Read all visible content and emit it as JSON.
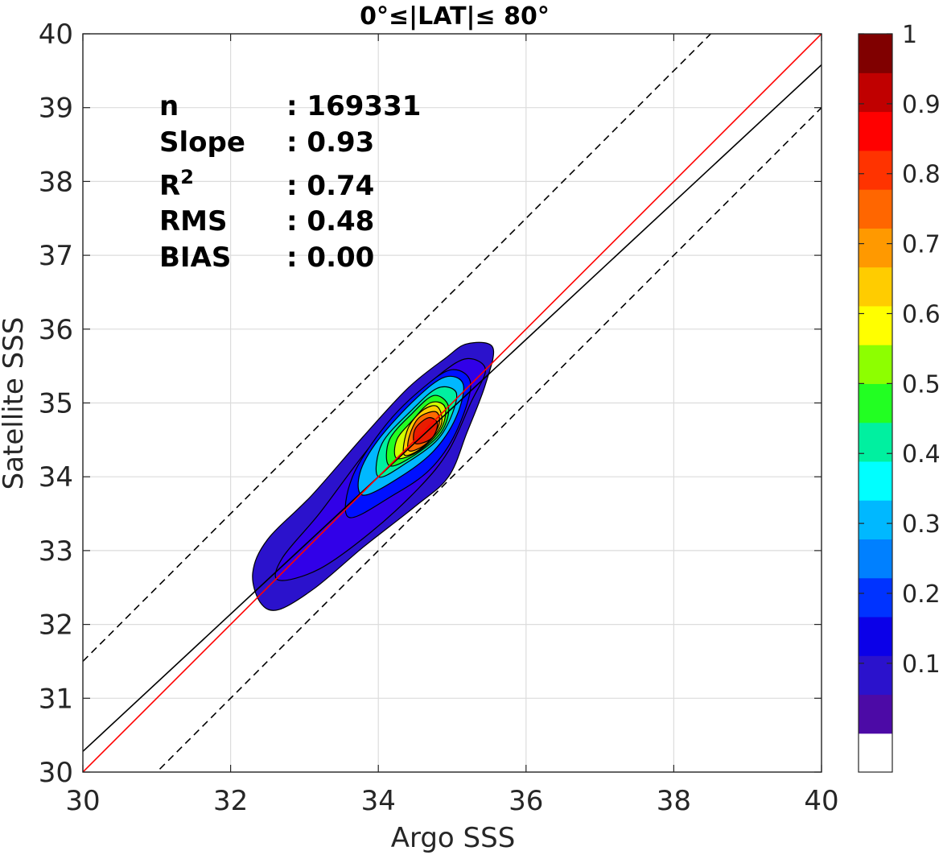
{
  "chart_data": {
    "type": "contour",
    "title": "0°≤|LAT|≤ 80°",
    "xlabel": "Argo SSS",
    "ylabel": "Satellite SSS",
    "xlim": [
      30,
      40
    ],
    "ylim": [
      30,
      40
    ],
    "xticks": [
      "30",
      "32",
      "34",
      "36",
      "38",
      "40"
    ],
    "yticks": [
      "30",
      "31",
      "32",
      "33",
      "34",
      "35",
      "36",
      "37",
      "38",
      "39",
      "40"
    ],
    "grid": true,
    "stats": [
      {
        "label": "n",
        "value": ": 169331"
      },
      {
        "label": "Slope",
        "value": ": 0.93"
      },
      {
        "label": "R",
        "sup": "2",
        "value": ": 0.74"
      },
      {
        "label": "RMS",
        "value": ": 0.48"
      },
      {
        "label": "BIAS",
        "value": ": 0.00"
      }
    ],
    "lines": {
      "one_to_one": {
        "color": "#ff0000",
        "from": [
          30,
          30
        ],
        "to": [
          40,
          40
        ]
      },
      "fit": {
        "color": "#000000",
        "from": [
          30,
          30.28
        ],
        "to": [
          40,
          39.58
        ]
      },
      "upper_bound": {
        "color": "#000000",
        "dashed": true,
        "from": [
          30,
          31.5
        ],
        "to": [
          40,
          41.5
        ]
      },
      "lower_bound": {
        "color": "#000000",
        "dashed": true,
        "from": [
          30,
          29
        ],
        "to": [
          40,
          39
        ]
      }
    },
    "density_contours": {
      "center": [
        34.65,
        34.6
      ],
      "levels": [
        {
          "level": 0.05,
          "color": "#2b12cc",
          "ring": [
            [
              32.4,
              32.3
            ],
            [
              32.65,
              32.2
            ],
            [
              33.15,
              32.5
            ],
            [
              33.8,
              33.05
            ],
            [
              34.5,
              33.6
            ],
            [
              34.95,
              34.0
            ],
            [
              35.2,
              34.6
            ],
            [
              35.45,
              35.25
            ],
            [
              35.55,
              35.75
            ],
            [
              35.2,
              35.8
            ],
            [
              34.9,
              35.6
            ],
            [
              34.4,
              35.2
            ],
            [
              33.8,
              34.55
            ],
            [
              33.1,
              33.75
            ],
            [
              32.5,
              33.15
            ],
            [
              32.3,
              32.7
            ]
          ]
        },
        {
          "level": 0.1,
          "color": "#3100e8",
          "ring": [
            [
              32.65,
              32.6
            ],
            [
              33.2,
              32.75
            ],
            [
              33.9,
              33.25
            ],
            [
              34.55,
              33.85
            ],
            [
              34.95,
              34.35
            ],
            [
              35.25,
              35.0
            ],
            [
              35.45,
              35.45
            ],
            [
              35.2,
              35.6
            ],
            [
              34.85,
              35.4
            ],
            [
              34.35,
              34.95
            ],
            [
              33.8,
              34.3
            ],
            [
              33.2,
              33.5
            ],
            [
              32.7,
              32.9
            ]
          ]
        },
        {
          "level": 0.2,
          "color": "#0010ff",
          "ring": [
            [
              33.6,
              33.45
            ],
            [
              34.2,
              33.75
            ],
            [
              34.7,
              34.1
            ],
            [
              35.05,
              34.6
            ],
            [
              35.25,
              35.25
            ],
            [
              35.0,
              35.45
            ],
            [
              34.6,
              35.2
            ],
            [
              34.1,
              34.7
            ],
            [
              33.65,
              34.0
            ]
          ]
        },
        {
          "level": 0.3,
          "color": "#00b8ff",
          "ring": [
            [
              33.8,
              33.75
            ],
            [
              34.3,
              34.0
            ],
            [
              34.75,
              34.35
            ],
            [
              35.05,
              34.8
            ],
            [
              35.15,
              35.25
            ],
            [
              34.9,
              35.35
            ],
            [
              34.5,
              35.05
            ],
            [
              34.0,
              34.5
            ],
            [
              33.75,
              34.05
            ]
          ]
        },
        {
          "level": 0.4,
          "color": "#00f0a0",
          "ring": [
            [
              34.0,
              34.0
            ],
            [
              34.4,
              34.2
            ],
            [
              34.8,
              34.5
            ],
            [
              35.0,
              34.85
            ],
            [
              35.05,
              35.15
            ],
            [
              34.8,
              35.2
            ],
            [
              34.45,
              34.9
            ],
            [
              34.05,
              34.45
            ]
          ]
        },
        {
          "level": 0.5,
          "color": "#22ff22",
          "ring": [
            [
              34.15,
              34.15
            ],
            [
              34.5,
              34.3
            ],
            [
              34.85,
              34.6
            ],
            [
              34.95,
              34.95
            ],
            [
              34.75,
              35.1
            ],
            [
              34.45,
              34.85
            ],
            [
              34.15,
              34.5
            ]
          ]
        },
        {
          "level": 0.6,
          "color": "#d0ff00",
          "ring": [
            [
              34.25,
              34.25
            ],
            [
              34.55,
              34.35
            ],
            [
              34.85,
              34.65
            ],
            [
              34.9,
              34.95
            ],
            [
              34.7,
              35.0
            ],
            [
              34.45,
              34.75
            ],
            [
              34.25,
              34.5
            ]
          ]
        },
        {
          "level": 0.7,
          "color": "#ffcc00",
          "ring": [
            [
              34.35,
              34.3
            ],
            [
              34.6,
              34.4
            ],
            [
              34.85,
              34.7
            ],
            [
              34.8,
              34.95
            ],
            [
              34.6,
              34.9
            ],
            [
              34.4,
              34.65
            ]
          ]
        },
        {
          "level": 0.8,
          "color": "#ff6a00",
          "ring": [
            [
              34.42,
              34.35
            ],
            [
              34.65,
              34.45
            ],
            [
              34.82,
              34.7
            ],
            [
              34.78,
              34.88
            ],
            [
              34.55,
              34.8
            ],
            [
              34.42,
              34.55
            ]
          ]
        },
        {
          "level": 0.9,
          "color": "#e81c00",
          "ring": [
            [
              34.5,
              34.45
            ],
            [
              34.72,
              34.52
            ],
            [
              34.8,
              34.72
            ],
            [
              34.68,
              34.8
            ],
            [
              34.5,
              34.65
            ]
          ]
        }
      ]
    },
    "colorbar": {
      "colors": [
        "#ffffff",
        "#4c0aa6",
        "#2b12cc",
        "#0b00e8",
        "#0033ff",
        "#0080ff",
        "#00b8ff",
        "#00ffff",
        "#00f0a0",
        "#22ff22",
        "#8dff00",
        "#ffff00",
        "#ffcc00",
        "#ff9900",
        "#ff6600",
        "#ff3300",
        "#ff0000",
        "#c00000",
        "#800000"
      ],
      "ticks": [
        {
          "value": 0.1,
          "label": "0.1"
        },
        {
          "value": 0.2,
          "label": "0.2"
        },
        {
          "value": 0.3,
          "label": "0.3"
        },
        {
          "value": 0.4,
          "label": "0.4"
        },
        {
          "value": 0.5,
          "label": "0.5"
        },
        {
          "value": 0.6,
          "label": "0.6"
        },
        {
          "value": 0.7,
          "label": "0.7"
        },
        {
          "value": 0.8,
          "label": "0.8"
        },
        {
          "value": 0.9,
          "label": "0.9"
        },
        {
          "value": 1.0,
          "label": "1"
        }
      ]
    }
  }
}
